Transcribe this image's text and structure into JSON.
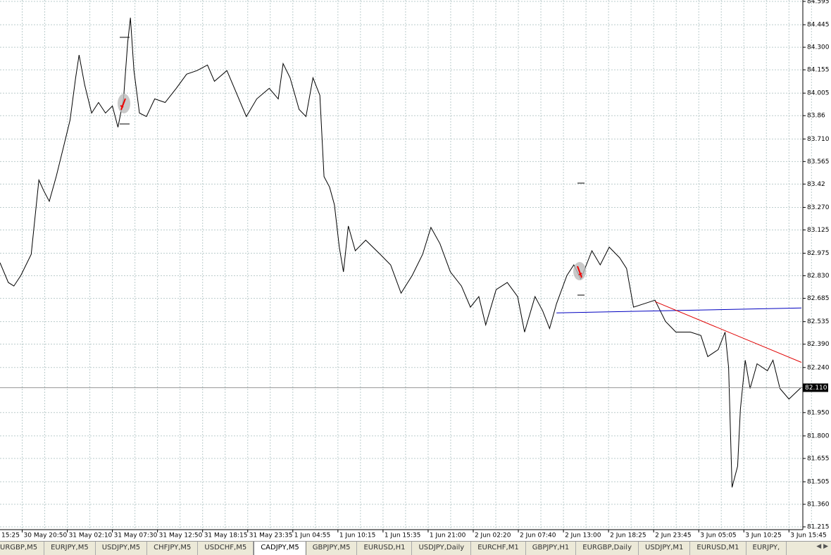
{
  "chart_data": {
    "type": "line",
    "color": "#000000",
    "x": [
      -14,
      -2,
      6,
      16,
      31,
      42,
      49,
      57,
      67,
      77,
      87,
      95,
      100,
      108,
      118,
      128,
      138,
      148,
      156,
      164,
      170,
      174,
      179,
      187,
      197,
      209,
      224,
      240,
      255,
      270,
      285,
      295,
      313,
      326,
      341,
      356,
      374,
      387,
      394,
      404,
      417,
      427,
      437,
      447,
      453,
      461,
      468,
      475,
      481,
      488,
      498,
      513,
      534,
      549,
      564,
      580,
      595,
      607,
      620,
      635,
      651,
      664,
      676,
      686,
      701,
      717,
      732,
      742,
      757,
      768,
      778,
      788,
      803,
      813,
      823,
      839,
      851,
      864,
      879,
      889,
      899,
      914,
      930,
      945,
      960,
      981,
      996,
      1006,
      1021,
      1031,
      1036,
      1041,
      1049,
      1053,
      1060,
      1067,
      1077,
      1092,
      1100,
      1110,
      1123,
      1141
    ],
    "values": [
      82.914,
      82.787,
      82.764,
      82.832,
      82.968,
      83.446,
      83.377,
      83.309,
      83.468,
      83.65,
      83.832,
      84.104,
      84.25,
      84.059,
      83.877,
      83.945,
      83.877,
      83.922,
      83.786,
      83.968,
      84.331,
      84.49,
      84.15,
      83.877,
      83.854,
      83.968,
      83.945,
      84.036,
      84.127,
      84.15,
      84.186,
      84.081,
      84.15,
      84.013,
      83.854,
      83.968,
      84.036,
      83.968,
      84.195,
      84.104,
      83.9,
      83.854,
      84.104,
      83.991,
      83.468,
      83.4,
      83.286,
      83.014,
      82.855,
      83.15,
      82.991,
      83.059,
      82.968,
      82.9,
      82.718,
      82.832,
      82.968,
      83.141,
      83.037,
      82.855,
      82.764,
      82.628,
      82.696,
      82.514,
      82.741,
      82.787,
      82.696,
      82.468,
      82.696,
      82.605,
      82.491,
      82.65,
      82.832,
      82.9,
      82.809,
      82.991,
      82.9,
      83.014,
      82.946,
      82.877,
      82.628,
      82.65,
      82.673,
      82.537,
      82.468,
      82.468,
      82.446,
      82.31,
      82.355,
      82.468,
      82.241,
      81.469,
      81.605,
      81.969,
      82.287,
      82.105,
      82.264,
      82.219,
      82.287,
      82.105,
      82.037,
      82.113
    ],
    "xlim": [
      -14,
      1143
    ],
    "ylim": [
      81.197,
      84.604
    ],
    "yticks": [
      84.595,
      84.445,
      {
        "value": 84.3,
        "label": "84.300"
      },
      84.155,
      84.005,
      83.86,
      {
        "value": 83.71,
        "label": "83.710"
      },
      83.565,
      83.42,
      {
        "value": 83.27,
        "label": "83.270"
      },
      83.125,
      82.975,
      {
        "value": 82.83,
        "label": "82.830"
      },
      82.685,
      82.535,
      {
        "value": 82.39,
        "label": "82.390"
      },
      {
        "value": 82.24,
        "label": "82.240"
      },
      {
        "value": 81.95,
        "label": "81.950"
      },
      {
        "value": 81.8,
        "label": "81.800"
      },
      81.655,
      81.505,
      {
        "value": 81.36,
        "label": "81.360"
      },
      81.215
    ],
    "xticks": [
      {
        "value": -47,
        "label": "15:25"
      },
      {
        "value": 18,
        "label": "30 May 20:50"
      },
      {
        "value": 83,
        "label": "31 May 02:10"
      },
      {
        "value": 148,
        "label": "31 May 07:30"
      },
      {
        "value": 213,
        "label": "31 May 12:50"
      },
      {
        "value": 278,
        "label": "31 May 18:15"
      },
      {
        "value": 343,
        "label": "31 May 23:35"
      },
      {
        "value": 408,
        "label": "1 Jun 04:55"
      },
      {
        "value": 473,
        "label": "1 Jun 10:15"
      },
      {
        "value": 538,
        "label": "1 Jun 15:35"
      },
      {
        "value": 603,
        "label": "1 Jun 21:00"
      },
      {
        "value": 668,
        "label": "2 Jun 02:20"
      },
      {
        "value": 733,
        "label": "2 Jun 07:40"
      },
      {
        "value": 798,
        "label": "2 Jun 13:00"
      },
      {
        "value": 863,
        "label": "2 Jun 18:25"
      },
      {
        "value": 928,
        "label": "2 Jun 23:45"
      },
      {
        "value": 993,
        "label": "3 Jun 05:05"
      },
      {
        "value": 1058,
        "label": "3 Jun 10:25"
      },
      {
        "value": 1123,
        "label": "3 Jun 15:45"
      }
    ],
    "current_price": {
      "value": 82.11,
      "label": "82.110"
    },
    "trendlines": [
      {
        "color": "#0000c0",
        "x": [
          788,
          1141
        ],
        "values": [
          82.591,
          82.623
        ]
      },
      {
        "color": "#e00000",
        "x": [
          930,
          1141
        ],
        "values": [
          82.664,
          82.273
        ]
      }
    ],
    "grid": true
  },
  "tabs": [
    "URGBP,M5",
    "EURJPY,M5",
    "USDJPY,M5",
    "CHFJPY,M5",
    "USDCHF,M5",
    "CADJPY,M5",
    "GBPJPY,M5",
    "EURUSD,H1",
    "USDJPY,Daily",
    "EURCHF,M1",
    "GBPJPY,H1",
    "EURGBP,Daily",
    "USDJPY,M1",
    "EURUSD,M1",
    "EURJPY,"
  ],
  "active_tab": 5
}
